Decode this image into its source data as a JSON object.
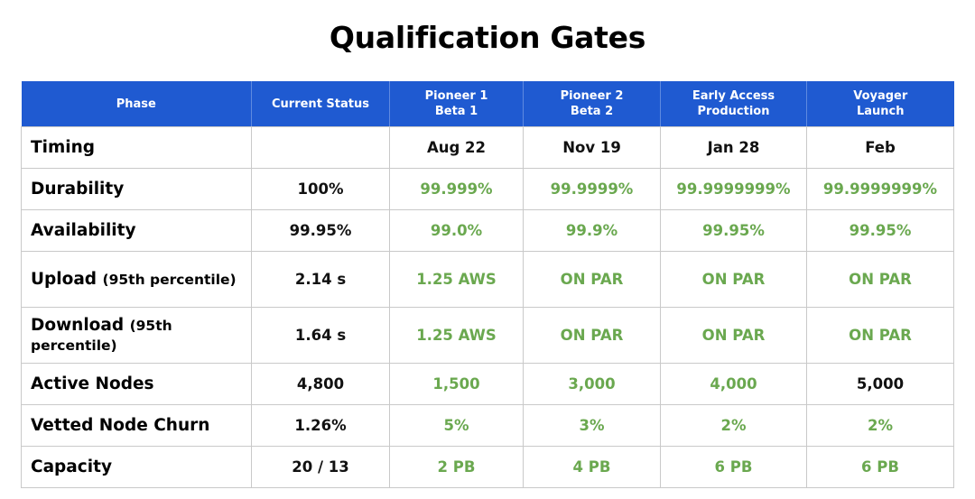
{
  "title": "Qualification Gates",
  "colors": {
    "header_bg": "#1f5ad1",
    "target_green": "#6aa84f",
    "text": "#111111"
  },
  "header": [
    "Phase",
    "Current Status",
    "Pioneer 1\nBeta 1",
    "Pioneer 2\nBeta 2",
    "Early Access\nProduction",
    "Voyager\nLaunch"
  ],
  "rows": [
    {
      "label": "Timing",
      "label_sub": "",
      "current": "",
      "values": [
        "Aug 22",
        "Nov 19",
        "Jan 28",
        "Feb"
      ],
      "value_colors": [
        "black",
        "black",
        "black",
        "black"
      ]
    },
    {
      "label": "Durability",
      "label_sub": "",
      "current": "100%",
      "values": [
        "99.999%",
        "99.9999%",
        "99.9999999%",
        "99.9999999%"
      ],
      "value_colors": [
        "green",
        "green",
        "green",
        "green"
      ]
    },
    {
      "label": "Availability",
      "label_sub": "",
      "current": "99.95%",
      "values": [
        "99.0%",
        "99.9%",
        "99.95%",
        "99.95%"
      ],
      "value_colors": [
        "green",
        "green",
        "green",
        "green"
      ]
    },
    {
      "label": "Upload",
      "label_sub": "(95th percentile)",
      "current": "2.14 s",
      "values": [
        "1.25 AWS",
        "ON PAR",
        "ON PAR",
        "ON PAR"
      ],
      "value_colors": [
        "green",
        "green",
        "green",
        "green"
      ]
    },
    {
      "label": "Download",
      "label_sub": "(95th percentile)",
      "current": "1.64 s",
      "values": [
        "1.25 AWS",
        "ON PAR",
        "ON PAR",
        "ON PAR"
      ],
      "value_colors": [
        "green",
        "green",
        "green",
        "green"
      ]
    },
    {
      "label": "Active Nodes",
      "label_sub": "",
      "current": "4,800",
      "values": [
        "1,500",
        "3,000",
        "4,000",
        "5,000"
      ],
      "value_colors": [
        "green",
        "green",
        "green",
        "black"
      ]
    },
    {
      "label": "Vetted Node Churn",
      "label_sub": "",
      "current": "1.26%",
      "values": [
        "5%",
        "3%",
        "2%",
        "2%"
      ],
      "value_colors": [
        "green",
        "green",
        "green",
        "green"
      ]
    },
    {
      "label": "Capacity",
      "label_sub": "",
      "current": "20 / 13",
      "values": [
        "2 PB",
        "4 PB",
        "6 PB",
        "6 PB"
      ],
      "value_colors": [
        "green",
        "green",
        "green",
        "green"
      ]
    }
  ]
}
